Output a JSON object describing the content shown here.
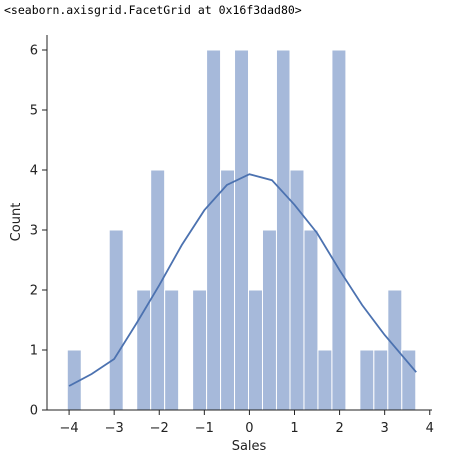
{
  "output_text": "<seaborn.axisgrid.FacetGrid at 0x16f3dad80>",
  "chart_data": {
    "type": "histogram",
    "xlabel": "Sales",
    "ylabel": "Count",
    "bins": [
      -4.04,
      -3.73,
      -3.42,
      -3.11,
      -2.8,
      -2.5,
      -2.19,
      -1.88,
      -1.57,
      -1.26,
      -0.95,
      -0.64,
      -0.33,
      -0.02,
      0.29,
      0.6,
      0.9,
      1.21,
      1.52,
      1.83,
      2.14,
      2.45,
      2.76,
      3.07,
      3.38,
      3.69
    ],
    "counts": [
      1,
      0,
      0,
      3,
      0,
      2,
      4,
      2,
      0,
      2,
      6,
      4,
      6,
      2,
      3,
      6,
      4,
      3,
      1,
      6,
      0,
      1,
      1,
      2,
      1
    ],
    "color": "#a6b9da",
    "kde": {
      "color": "#4c72b0",
      "x": [
        -4,
        -3.5,
        -3,
        -2.5,
        -2,
        -1.5,
        -1,
        -0.5,
        0,
        0.5,
        1,
        1.5,
        2,
        2.5,
        3,
        3.7
      ],
      "y": [
        0.4,
        0.6,
        0.85,
        1.45,
        2.08,
        2.75,
        3.33,
        3.75,
        3.93,
        3.83,
        3.42,
        2.95,
        2.33,
        1.75,
        1.25,
        0.63
      ]
    },
    "xlim": [
      -4.49,
      4.05
    ],
    "ylim": [
      0,
      6.25
    ],
    "xticks": [
      {
        "value": -4,
        "label": "−4"
      },
      {
        "value": -3,
        "label": "−3"
      },
      {
        "value": -2,
        "label": "−2"
      },
      {
        "value": -1,
        "label": "−1"
      },
      0,
      1,
      2,
      3,
      4
    ],
    "yticks": [
      0,
      1,
      2,
      3,
      4,
      5,
      6
    ]
  }
}
